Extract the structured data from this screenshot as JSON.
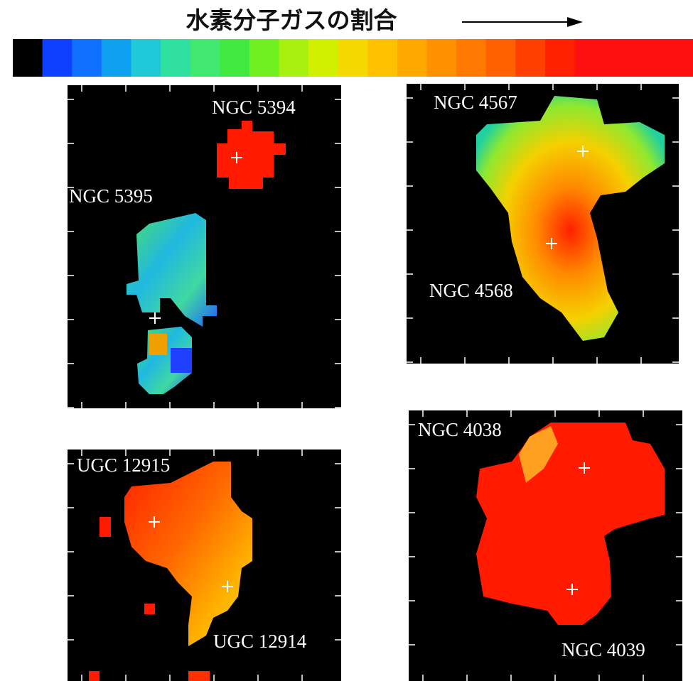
{
  "title": "水素分子ガスの割合",
  "panels": [
    {
      "labels": [
        "NGC 5394",
        "NGC 5395"
      ]
    },
    {
      "labels": [
        "NGC 4567",
        "NGC 4568"
      ]
    },
    {
      "labels": [
        "UGC 12915",
        "UGC 12914"
      ]
    },
    {
      "labels": [
        "NGC 4038",
        "NGC 4039"
      ]
    }
  ]
}
